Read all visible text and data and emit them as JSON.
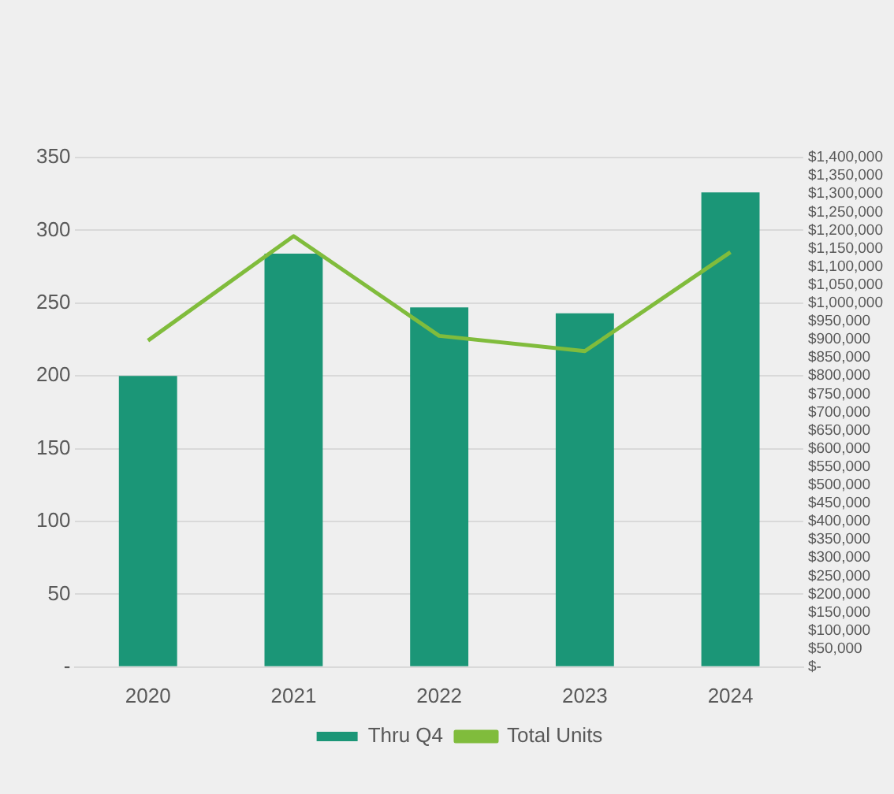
{
  "chart_data": {
    "type": "bar",
    "categories": [
      "2020",
      "2021",
      "2022",
      "2023",
      "2024"
    ],
    "series": [
      {
        "name": "Thru Q4",
        "color": "#1b9677",
        "values": [
          200,
          284,
          247,
          243,
          326
        ]
      },
      {
        "name": "Total Units",
        "type": "line",
        "axis": "y2",
        "color": "#80bc3c",
        "values": [
          897000,
          1184000,
          910000,
          868000,
          1140000
        ]
      }
    ],
    "ylim": [
      0,
      350
    ],
    "yticks": [
      {
        "value": 0,
        "label": "-"
      },
      50,
      100,
      150,
      200,
      250,
      300,
      350
    ],
    "y2lim": [
      0,
      1400000
    ],
    "y2ticks": [
      {
        "value": 0,
        "label": "$-"
      },
      {
        "value": 50000,
        "label": "$50,000"
      },
      {
        "value": 100000,
        "label": "$100,000"
      },
      {
        "value": 150000,
        "label": "$150,000"
      },
      {
        "value": 200000,
        "label": "$200,000"
      },
      {
        "value": 250000,
        "label": "$250,000"
      },
      {
        "value": 300000,
        "label": "$300,000"
      },
      {
        "value": 350000,
        "label": "$350,000"
      },
      {
        "value": 400000,
        "label": "$400,000"
      },
      {
        "value": 450000,
        "label": "$450,000"
      },
      {
        "value": 500000,
        "label": "$500,000"
      },
      {
        "value": 550000,
        "label": "$550,000"
      },
      {
        "value": 600000,
        "label": "$600,000"
      },
      {
        "value": 650000,
        "label": "$650,000"
      },
      {
        "value": 700000,
        "label": "$700,000"
      },
      {
        "value": 750000,
        "label": "$750,000"
      },
      {
        "value": 800000,
        "label": "$800,000"
      },
      {
        "value": 850000,
        "label": "$850,000"
      },
      {
        "value": 900000,
        "label": "$900,000"
      },
      {
        "value": 950000,
        "label": "$950,000"
      },
      {
        "value": 1000000,
        "label": "$1,000,000"
      },
      {
        "value": 1050000,
        "label": "$1,050,000"
      },
      {
        "value": 1100000,
        "label": "$1,100,000"
      },
      {
        "value": 1150000,
        "label": "$1,150,000"
      },
      {
        "value": 1200000,
        "label": "$1,200,000"
      },
      {
        "value": 1250000,
        "label": "$1,250,000"
      },
      {
        "value": 1300000,
        "label": "$1,300,000"
      },
      {
        "value": 1350000,
        "label": "$1,350,000"
      },
      {
        "value": 1400000,
        "label": "$1,400,000"
      }
    ],
    "grid": "y",
    "legend": "bottom",
    "marker": "none",
    "line_style": "solid"
  }
}
